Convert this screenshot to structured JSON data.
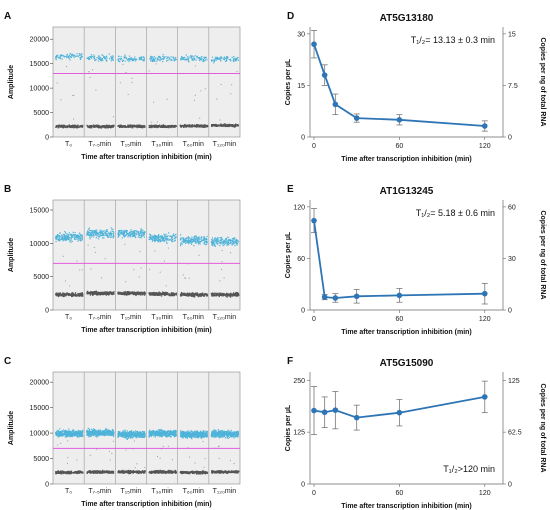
{
  "colors": {
    "positive": "#4fb3d9",
    "negative": "#555555",
    "threshold": "#e05ce0",
    "line": "#2e75b6",
    "err": "#777777"
  },
  "chart_data": [
    {
      "type": "scatter",
      "letter": "A",
      "title": "",
      "xlabel": "Time after transcription inhibition (min)",
      "ylabel": "Amplitude",
      "ylim": [
        0,
        22500
      ],
      "yticks": [
        0,
        5000,
        10000,
        15000,
        20000
      ],
      "categories": [
        "T₀",
        "T₇.₅min",
        "T₁₅min",
        "T₃₀min",
        "T₆₀min",
        "T₁₂₀min"
      ],
      "threshold": 13000,
      "positive_levels": [
        16800,
        16400,
        16200,
        16300,
        16300,
        16200
      ],
      "negative_levels": [
        2300,
        2300,
        2300,
        2300,
        2400,
        2500
      ],
      "positive_density": "sparse"
    },
    {
      "type": "line",
      "letter": "D",
      "title": "AT5G13180",
      "xlabel": "Time after transcription inhibition (min)",
      "ylabel": "Copies per µL",
      "y2label": "Copies per ng of total RNA",
      "xlim": [
        0,
        130
      ],
      "xticks": [
        0,
        60,
        120
      ],
      "ylim": [
        0,
        32
      ],
      "yticks": [
        0,
        15,
        30
      ],
      "y2ticks": [
        "0",
        "7.5",
        "15"
      ],
      "x": [
        0,
        7.5,
        15,
        30,
        60,
        120
      ],
      "y": [
        27,
        18,
        9.5,
        5.5,
        5,
        3.2
      ],
      "err": [
        4,
        3,
        3,
        1.2,
        1.5,
        1.5
      ],
      "annotation": "T₁/₂= 13.13 ± 0.3 min",
      "ann_pos": "top"
    },
    {
      "type": "scatter",
      "letter": "B",
      "title": "",
      "xlabel": "Time after transcription inhibition (min)",
      "ylabel": "Amplitude",
      "ylim": [
        0,
        16500
      ],
      "yticks": [
        0,
        5000,
        10000,
        15000
      ],
      "categories": [
        "T₀",
        "T₇.₅min",
        "T₁₅min",
        "T₃₀min",
        "T₆₀min",
        "T₁₂₀min"
      ],
      "threshold": 7000,
      "positive_levels": [
        11200,
        11700,
        11700,
        11000,
        10700,
        10500
      ],
      "negative_levels": [
        2400,
        2600,
        2600,
        2500,
        2400,
        2400
      ],
      "positive_density": "medium"
    },
    {
      "type": "line",
      "letter": "E",
      "title": "AT1G13245",
      "xlabel": "Time after transcription inhibition (min)",
      "ylabel": "Copies per µL",
      "y2label": "Copies per ng of total RNA",
      "xlim": [
        0,
        130
      ],
      "xticks": [
        0,
        60,
        120
      ],
      "ylim": [
        0,
        128
      ],
      "yticks": [
        0,
        60,
        120
      ],
      "y2ticks": [
        "0",
        "30",
        "60"
      ],
      "x": [
        0,
        7.5,
        15,
        30,
        60,
        120
      ],
      "y": [
        104,
        15,
        14,
        16,
        17,
        19
      ],
      "err": [
        14,
        3,
        5,
        8,
        8,
        12
      ],
      "annotation": "T₁/₂= 5.18 ± 0.6 min",
      "ann_pos": "top"
    },
    {
      "type": "scatter",
      "letter": "C",
      "title": "",
      "xlabel": "Time after transcription inhibition (min)",
      "ylabel": "Amplitude",
      "ylim": [
        0,
        22000
      ],
      "yticks": [
        0,
        5000,
        10000,
        15000,
        20000
      ],
      "categories": [
        "T₀",
        "T₇.₅min",
        "T₁₅min",
        "T₃₀min",
        "T₆₀min",
        "T₁₂₀min"
      ],
      "threshold": 7000,
      "positive_levels": [
        10200,
        10300,
        10000,
        10200,
        10000,
        10100
      ],
      "negative_levels": [
        2400,
        2500,
        2500,
        2500,
        2400,
        2500
      ],
      "positive_density": "dense"
    },
    {
      "type": "line",
      "letter": "F",
      "title": "AT5G15090",
      "xlabel": "Time after transcription inhibition (min)",
      "ylabel": "Copies per µL",
      "y2label": "Copies per ng of total RNA",
      "xlim": [
        0,
        130
      ],
      "xticks": [
        0,
        60,
        120
      ],
      "ylim": [
        0,
        270
      ],
      "yticks": [
        0,
        125,
        250
      ],
      "y2ticks": [
        "0",
        "62.5",
        "125"
      ],
      "x": [
        0,
        7.5,
        15,
        30,
        60,
        120
      ],
      "y": [
        177,
        173,
        178,
        160,
        172,
        210
      ],
      "err": [
        58,
        37,
        45,
        30,
        32,
        38
      ],
      "annotation": "T₁/₂>120 min",
      "ann_pos": "bottom"
    }
  ]
}
